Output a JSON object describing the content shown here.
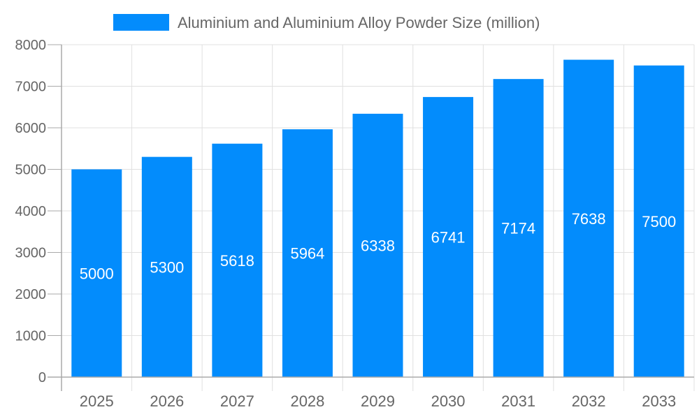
{
  "chart_data": {
    "type": "bar",
    "categories": [
      "2025",
      "2026",
      "2027",
      "2028",
      "2029",
      "2030",
      "2031",
      "2032",
      "2033"
    ],
    "series": [
      {
        "name": "Aluminium and Aluminium Alloy Powder Size (million)",
        "values": [
          5000,
          5300,
          5618,
          5964,
          6338,
          6741,
          7174,
          7638,
          7500
        ],
        "color": "#038cfc"
      }
    ],
    "ylim": [
      0,
      8000
    ],
    "yticks": [
      "0",
      "1000",
      "2000",
      "3000",
      "4000",
      "5000",
      "6000",
      "7000",
      "8000"
    ],
    "grid": true,
    "legend": "top",
    "data_labels": true,
    "colors": {
      "text": "#666666",
      "grid": "#e0e0e0",
      "axis": "#aaaaaa",
      "label": "#ffffff"
    }
  }
}
